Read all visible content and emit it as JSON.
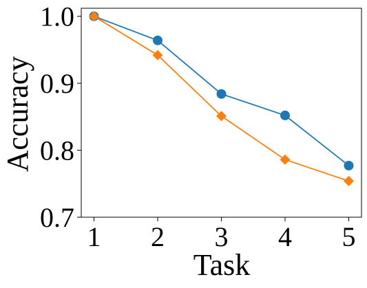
{
  "chart_data": {
    "type": "line",
    "title": "",
    "xlabel": "Task",
    "ylabel": "Accuracy",
    "x": [
      1,
      2,
      3,
      4,
      5
    ],
    "x_tick_labels": [
      "1",
      "2",
      "3",
      "4",
      "5"
    ],
    "xlim": [
      0.8,
      5.2
    ],
    "ylim": [
      0.7,
      1.012
    ],
    "y_ticks": [
      0.7,
      0.8,
      0.9,
      1.0
    ],
    "y_tick_labels": [
      "0.7",
      "0.8",
      "0.9",
      "1.0"
    ],
    "grid": false,
    "legend": "none",
    "series": [
      {
        "color": "#1f77b4",
        "marker": "circle",
        "values": [
          1.0,
          0.964,
          0.884,
          0.852,
          0.777
        ]
      },
      {
        "color": "#ff7f0e",
        "marker": "diamond",
        "values": [
          1.0,
          0.942,
          0.851,
          0.786,
          0.754
        ]
      }
    ]
  }
}
